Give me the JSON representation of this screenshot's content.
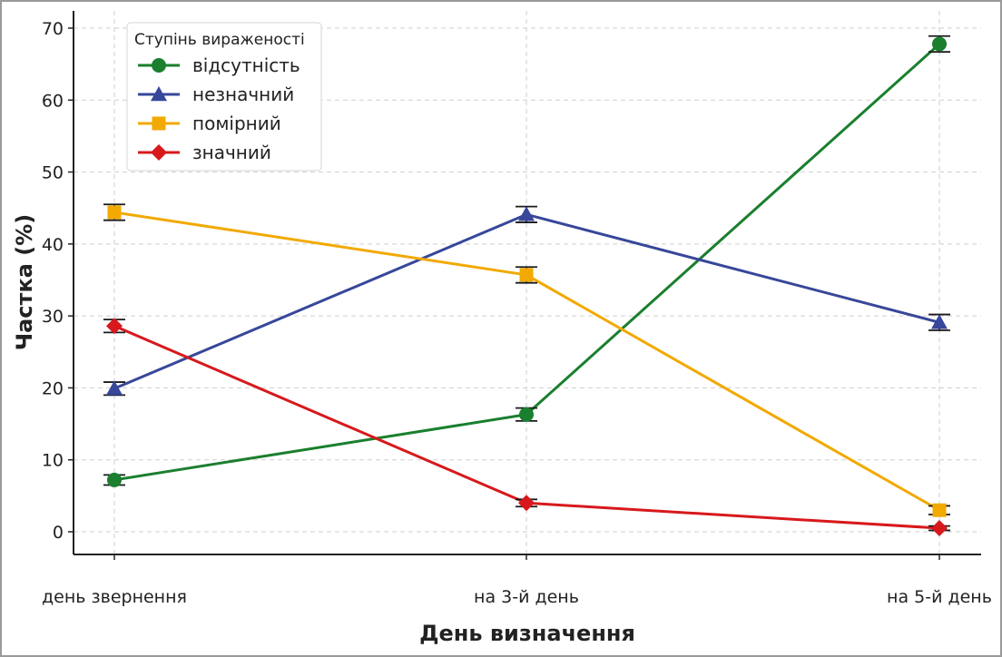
{
  "chart_data": {
    "type": "line",
    "xlabel": "День визначення",
    "ylabel": "Частка (%)",
    "categories": [
      "день звернення",
      "на 3-й день",
      "на 5-й день"
    ],
    "ylim": [
      0,
      70
    ],
    "yticks": [
      0,
      10,
      20,
      30,
      40,
      50,
      60,
      70
    ],
    "grid": true,
    "legend": {
      "title": "Ступінь вираженості",
      "placement": "top-left"
    },
    "series": [
      {
        "name": "відсутність",
        "color": "#1a7f2e",
        "marker": "circle",
        "values": [
          7.2,
          16.3,
          67.8
        ],
        "errors": [
          0.7,
          0.9,
          1.1
        ]
      },
      {
        "name": "незначний",
        "color": "#37479a",
        "marker": "triangle",
        "values": [
          19.9,
          44.1,
          29.1
        ],
        "errors": [
          0.9,
          1.1,
          1.1
        ]
      },
      {
        "name": "помірний",
        "color": "#f2a900",
        "marker": "square",
        "values": [
          44.4,
          35.7,
          3.0
        ],
        "errors": [
          1.1,
          1.1,
          0.6
        ]
      },
      {
        "name": "значний",
        "color": "#d7191c",
        "marker": "diamond",
        "values": [
          28.6,
          4.0,
          0.5
        ],
        "errors": [
          0.9,
          0.5,
          0.3
        ]
      }
    ]
  }
}
